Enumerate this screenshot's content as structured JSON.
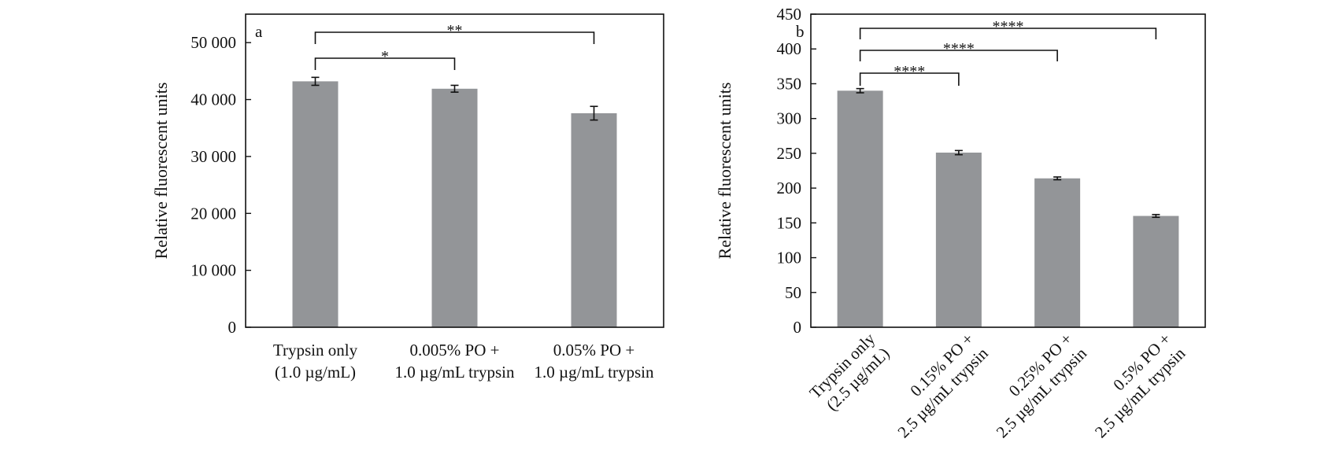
{
  "chart_data": [
    {
      "panel": "a",
      "type": "bar",
      "ylabel": "Relative fluorescent units",
      "ylim": [
        0,
        55000
      ],
      "y_ticks": [
        0,
        10000,
        20000,
        30000,
        40000,
        50000
      ],
      "y_tick_labels": [
        "0",
        "10 000",
        "20 000",
        "30 000",
        "40 000",
        "50 000"
      ],
      "categories": [
        [
          "Trypsin only",
          "(1.0 µg/mL)"
        ],
        [
          "0.005% PO +",
          "1.0 µg/mL trypsin"
        ],
        [
          "0.05% PO +",
          "1.0 µg/mL trypsin"
        ]
      ],
      "values": [
        43200,
        41900,
        37600
      ],
      "errors": [
        700,
        600,
        1200
      ],
      "bar_color": "#939598",
      "significance": [
        {
          "from": 0,
          "to": 1,
          "label": "*"
        },
        {
          "from": 0,
          "to": 2,
          "label": "**"
        }
      ],
      "grid": false
    },
    {
      "panel": "b",
      "type": "bar",
      "ylabel": "Relative fluorescent units",
      "ylim": [
        0,
        450
      ],
      "y_ticks": [
        0,
        50,
        100,
        150,
        200,
        250,
        300,
        350,
        400,
        450
      ],
      "y_tick_labels": [
        "0",
        "50",
        "100",
        "150",
        "200",
        "250",
        "300",
        "350",
        "400",
        "450"
      ],
      "categories": [
        [
          "Trypsin only",
          "(2.5 µg/mL)"
        ],
        [
          "0.15% PO +",
          "2.5 µg/mL trypsin"
        ],
        [
          "0.25% PO +",
          "2.5 µg/mL trypsin"
        ],
        [
          "0.5% PO +",
          "2.5 µg/mL trypsin"
        ]
      ],
      "values": [
        340,
        251,
        214,
        160
      ],
      "errors": [
        3,
        3,
        2,
        2
      ],
      "bar_color": "#939598",
      "significance": [
        {
          "from": 0,
          "to": 1,
          "label": "****"
        },
        {
          "from": 0,
          "to": 2,
          "label": "****"
        },
        {
          "from": 0,
          "to": 3,
          "label": "****"
        }
      ],
      "grid": false
    }
  ]
}
